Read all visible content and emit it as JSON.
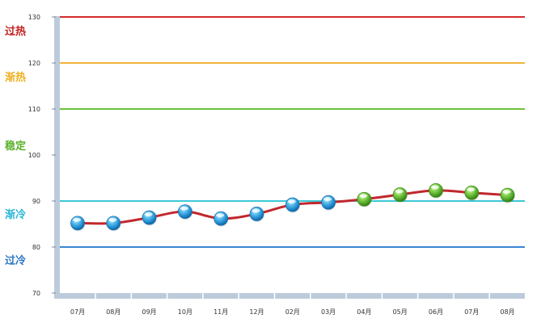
{
  "chart_data": {
    "type": "line",
    "title": "",
    "xlabel": "",
    "ylabel": "",
    "ylim": [
      70,
      130
    ],
    "y_ticks": [
      "70",
      "80",
      "90",
      "100",
      "110",
      "120",
      "130"
    ],
    "categories": [
      "07月",
      "08月",
      "09月",
      "10月",
      "11月",
      "12月",
      "02月",
      "03月",
      "04月",
      "05月",
      "06月",
      "07月",
      "08月"
    ],
    "series": [
      {
        "values": [
          85.2,
          85.2,
          86.4,
          87.7,
          86.2,
          87.2,
          89.2,
          89.7,
          90.4,
          91.4,
          92.3,
          91.8,
          91.3
        ],
        "line_color": "#c0282d"
      }
    ],
    "point_colors": [
      "blue",
      "blue",
      "blue",
      "blue",
      "blue",
      "blue",
      "blue",
      "blue",
      "green",
      "green",
      "green",
      "green",
      "green"
    ],
    "reference_lines": [
      {
        "value": 130,
        "label": "过热",
        "color": "#d12b2b",
        "label_color": "#c42020"
      },
      {
        "value": 120,
        "label": "渐热",
        "color": "#f0b43c",
        "label_color": "#f0b020"
      },
      {
        "value": 110,
        "label": "稳定",
        "color": "#6cc23a",
        "label_color": "#5ab02a"
      },
      {
        "value": 90,
        "label": "渐冷",
        "color": "#3cc8d8",
        "label_color": "#29b6d6"
      },
      {
        "value": 80,
        "label": "过冷",
        "color": "#3a86d2",
        "label_color": "#2a78c4"
      }
    ],
    "grid": false,
    "legend": "none"
  }
}
